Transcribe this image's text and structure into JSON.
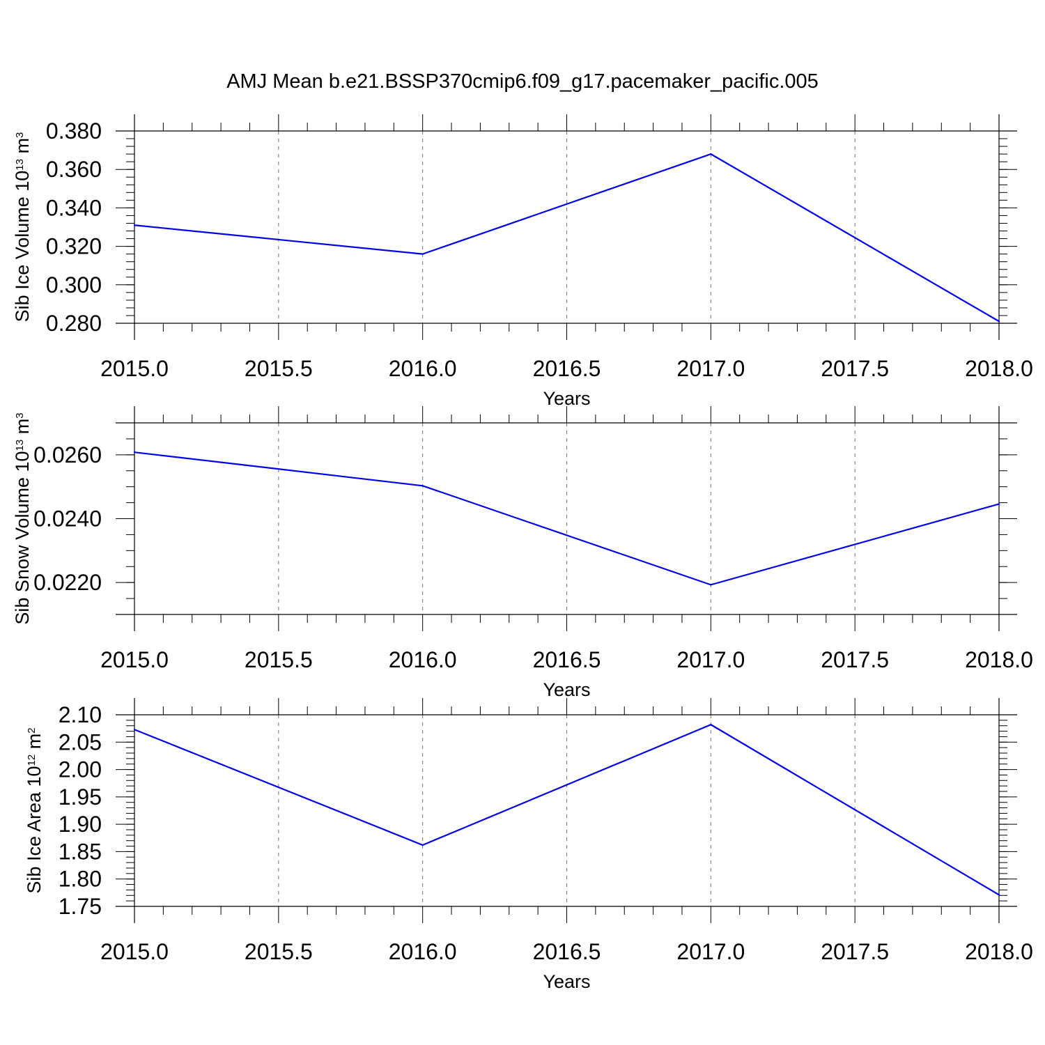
{
  "title": "AMJ Mean b.e21.BSSP370cmip6.f09_g17.pacemaker_pacific.005",
  "colors": {
    "series": "#0000ee",
    "frame": "#000000"
  },
  "chart_data": [
    {
      "type": "line",
      "xlabel": "Years",
      "ylabel": {
        "text": "Sib Ice Volume 10",
        "exp": "13",
        "unit": " m",
        "unit_exp": "3"
      },
      "xlim": [
        2015.0,
        2018.0
      ],
      "ylim": [
        0.28,
        0.38
      ],
      "x_ticks": [
        "2015.0",
        "2015.5",
        "2016.0",
        "2016.5",
        "2017.0",
        "2017.5",
        "2018.0"
      ],
      "y_ticks": [
        "0.280",
        "0.300",
        "0.320",
        "0.340",
        "0.360",
        "0.380"
      ],
      "y_tick_values": [
        0.28,
        0.3,
        0.32,
        0.34,
        0.36,
        0.38
      ],
      "y_minor_step": 0.004,
      "grid": "vertical dashed at major x ticks",
      "x": [
        2015,
        2016,
        2017,
        2018
      ],
      "values": [
        0.331,
        0.316,
        0.368,
        0.281
      ]
    },
    {
      "type": "line",
      "xlabel": "Years",
      "ylabel": {
        "text": "Sib Snow Volume 10",
        "exp": "13",
        "unit": " m",
        "unit_exp": "3"
      },
      "xlim": [
        2015.0,
        2018.0
      ],
      "ylim": [
        0.021,
        0.027
      ],
      "x_ticks": [
        "2015.0",
        "2015.5",
        "2016.0",
        "2016.5",
        "2017.0",
        "2017.5",
        "2018.0"
      ],
      "y_ticks": [
        "0.0220",
        "0.0240",
        "0.0260"
      ],
      "y_tick_values": [
        0.022,
        0.024,
        0.026
      ],
      "y_minor_step": 0.0005,
      "grid": "vertical dashed at major x ticks",
      "x": [
        2015,
        2016,
        2017,
        2018
      ],
      "values": [
        0.02608,
        0.02503,
        0.02193,
        0.02446
      ]
    },
    {
      "type": "line",
      "xlabel": "Years",
      "ylabel": {
        "text": "Sib Ice Area 10",
        "exp": "12",
        "unit": " m",
        "unit_exp": "2"
      },
      "xlim": [
        2015.0,
        2018.0
      ],
      "ylim": [
        1.75,
        2.1
      ],
      "x_ticks": [
        "2015.0",
        "2015.5",
        "2016.0",
        "2016.5",
        "2017.0",
        "2017.5",
        "2018.0"
      ],
      "y_ticks": [
        "1.75",
        "1.80",
        "1.85",
        "1.90",
        "1.95",
        "2.00",
        "2.05",
        "2.10"
      ],
      "y_tick_values": [
        1.75,
        1.8,
        1.85,
        1.9,
        1.95,
        2.0,
        2.05,
        2.1
      ],
      "y_minor_step": 0.01,
      "grid": "vertical dashed at major x ticks",
      "x": [
        2015,
        2016,
        2017,
        2018
      ],
      "values": [
        2.073,
        1.862,
        2.082,
        1.771
      ]
    }
  ]
}
